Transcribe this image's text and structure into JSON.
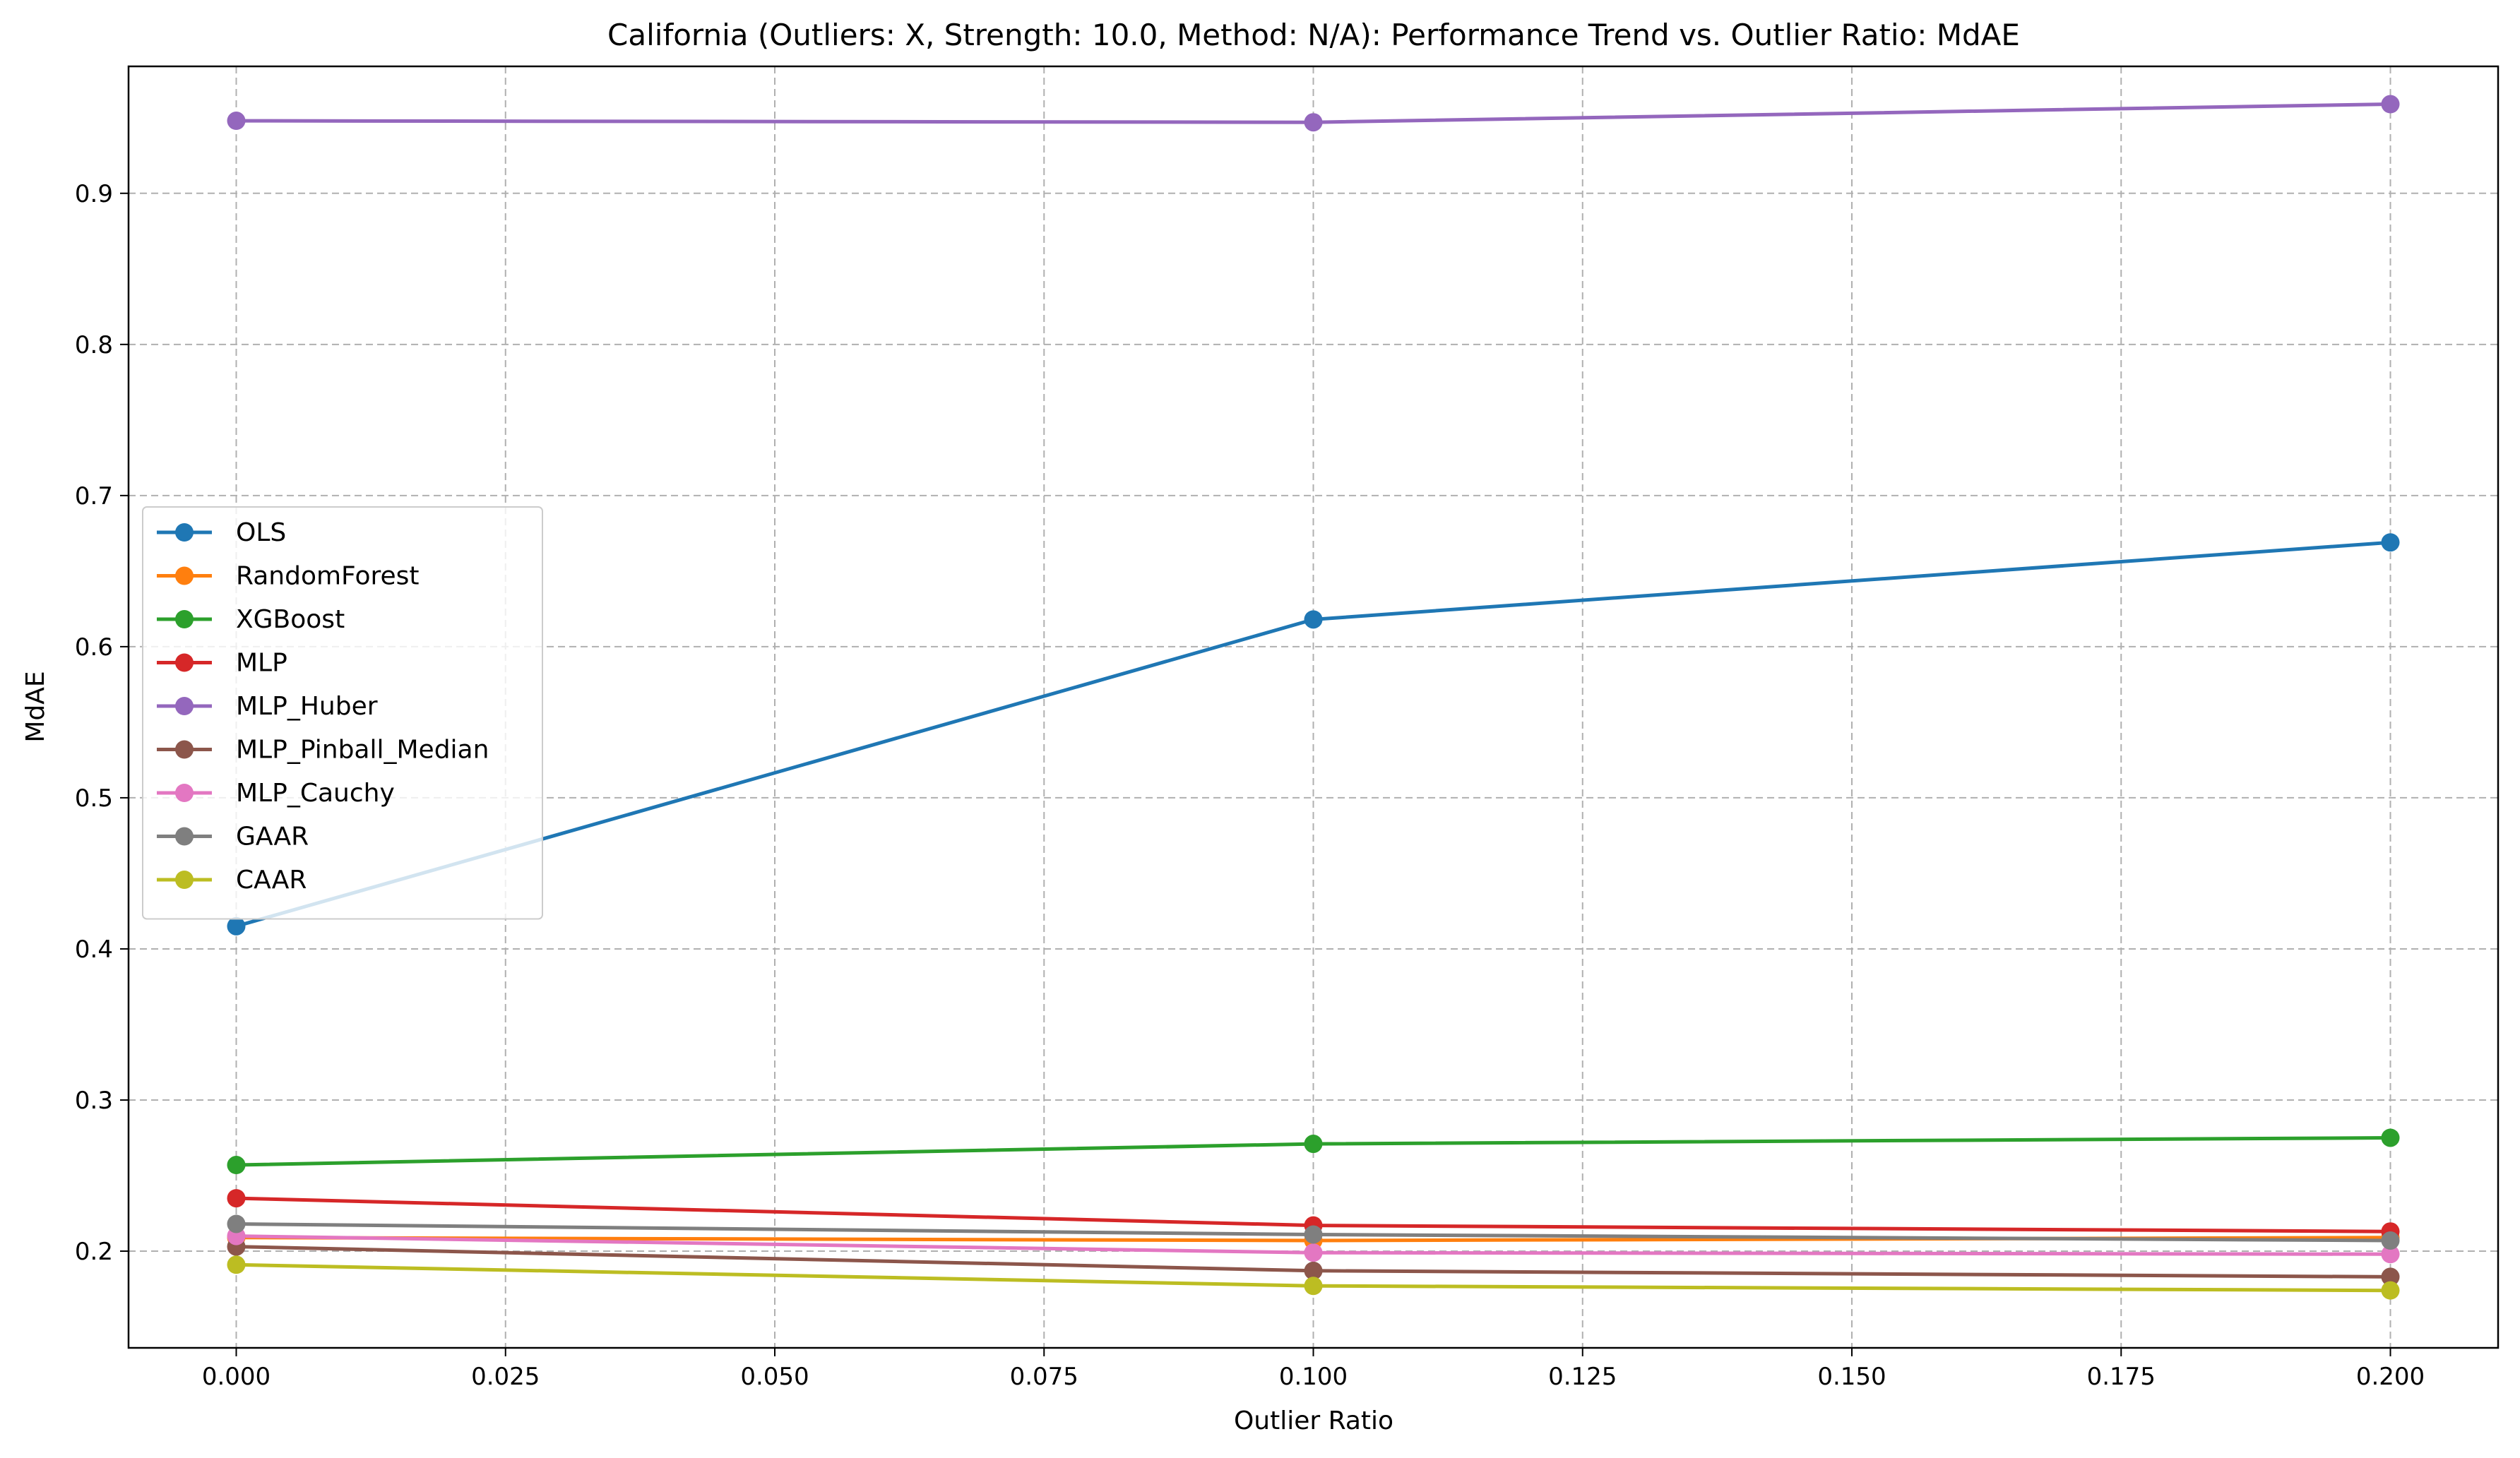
{
  "chart_data": {
    "type": "line",
    "title": "California (Outliers: X, Strength: 10.0, Method: N/A): Performance Trend vs. Outlier Ratio: MdAE",
    "xlabel": "Outlier Ratio",
    "ylabel": "MdAE",
    "xlim": [
      -0.01,
      0.21
    ],
    "ylim": [
      0.136,
      0.984
    ],
    "xticks": [
      0.0,
      0.025,
      0.05,
      0.075,
      0.1,
      0.125,
      0.15,
      0.175,
      0.2
    ],
    "xtick_labels": [
      "0.000",
      "0.025",
      "0.050",
      "0.075",
      "0.100",
      "0.125",
      "0.150",
      "0.175",
      "0.200"
    ],
    "yticks": [
      0.2,
      0.3,
      0.4,
      0.5,
      0.6,
      0.7,
      0.8,
      0.9
    ],
    "ytick_labels": [
      "0.2",
      "0.3",
      "0.4",
      "0.5",
      "0.6",
      "0.7",
      "0.8",
      "0.9"
    ],
    "grid": true,
    "legend_position": "center-left",
    "x": [
      0.0,
      0.1,
      0.2
    ],
    "series": [
      {
        "name": "OLS",
        "color": "#1f77b4",
        "values": [
          0.415,
          0.618,
          0.669
        ]
      },
      {
        "name": "RandomForest",
        "color": "#ff7f0e",
        "values": [
          0.209,
          0.207,
          0.209
        ]
      },
      {
        "name": "XGBoost",
        "color": "#2ca02c",
        "values": [
          0.257,
          0.271,
          0.275
        ]
      },
      {
        "name": "MLP",
        "color": "#d62728",
        "values": [
          0.235,
          0.217,
          0.213
        ]
      },
      {
        "name": "MLP_Huber",
        "color": "#9467bd",
        "values": [
          0.948,
          0.947,
          0.959
        ]
      },
      {
        "name": "MLP_Pinball_Median",
        "color": "#8c564b",
        "values": [
          0.203,
          0.187,
          0.183
        ]
      },
      {
        "name": "MLP_Cauchy",
        "color": "#e377c2",
        "values": [
          0.21,
          0.199,
          0.198
        ]
      },
      {
        "name": "GAAR",
        "color": "#7f7f7f",
        "values": [
          0.218,
          0.211,
          0.207
        ]
      },
      {
        "name": "CAAR",
        "color": "#bcbd22",
        "values": [
          0.191,
          0.177,
          0.174
        ]
      }
    ]
  }
}
